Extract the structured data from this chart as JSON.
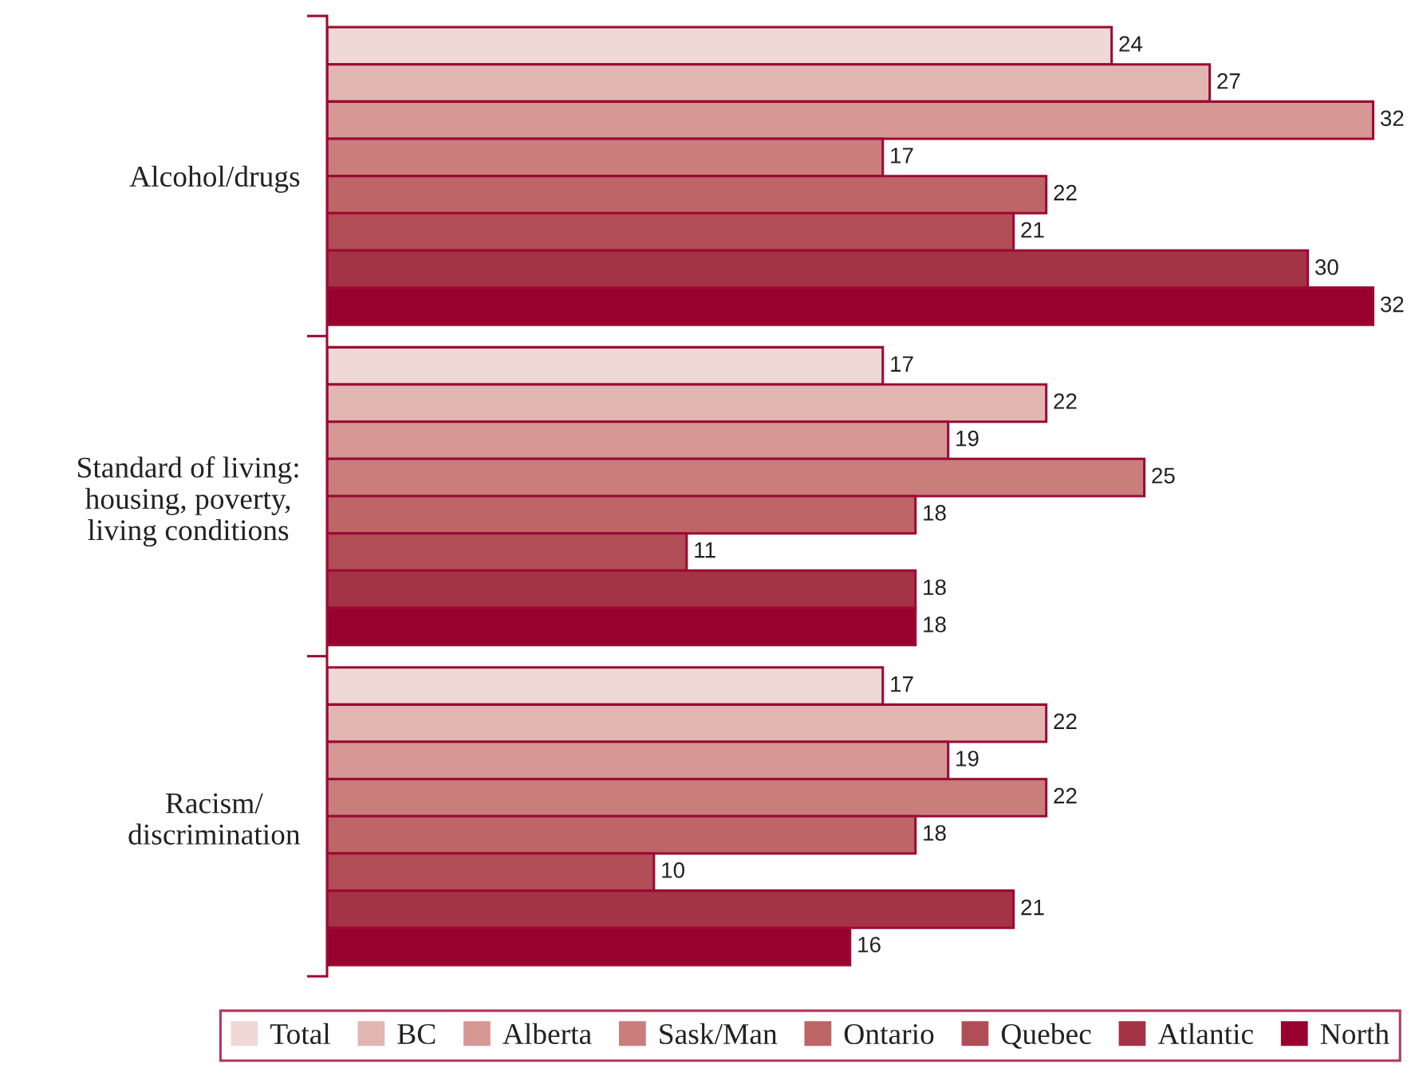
{
  "chart_data": {
    "type": "bar",
    "orientation": "horizontal",
    "categories": [
      "Alcohol/drugs",
      "Standard of living:\nhousing, poverty,\nliving conditions",
      "Racism/\ndiscrimination"
    ],
    "series": [
      {
        "name": "Total",
        "color": "#efd8d5",
        "values": [
          24,
          17,
          17
        ]
      },
      {
        "name": "BC",
        "color": "#e2b6b0",
        "values": [
          27,
          22,
          22
        ]
      },
      {
        "name": "Alberta",
        "color": "#d69795",
        "values": [
          32,
          19,
          19
        ]
      },
      {
        "name": "Sask/Man",
        "color": "#c97e7c",
        "values": [
          17,
          25,
          22
        ]
      },
      {
        "name": "Ontario",
        "color": "#bd6567",
        "values": [
          22,
          18,
          18
        ]
      },
      {
        "name": "Quebec",
        "color": "#b14e55",
        "values": [
          21,
          11,
          10
        ]
      },
      {
        "name": "Atlantic",
        "color": "#a43345",
        "values": [
          30,
          18,
          21
        ]
      },
      {
        "name": "North",
        "color": "#98002e",
        "values": [
          32,
          18,
          16
        ]
      }
    ],
    "data_labels": true,
    "legend": "bottom",
    "tick_labels": "y"
  }
}
